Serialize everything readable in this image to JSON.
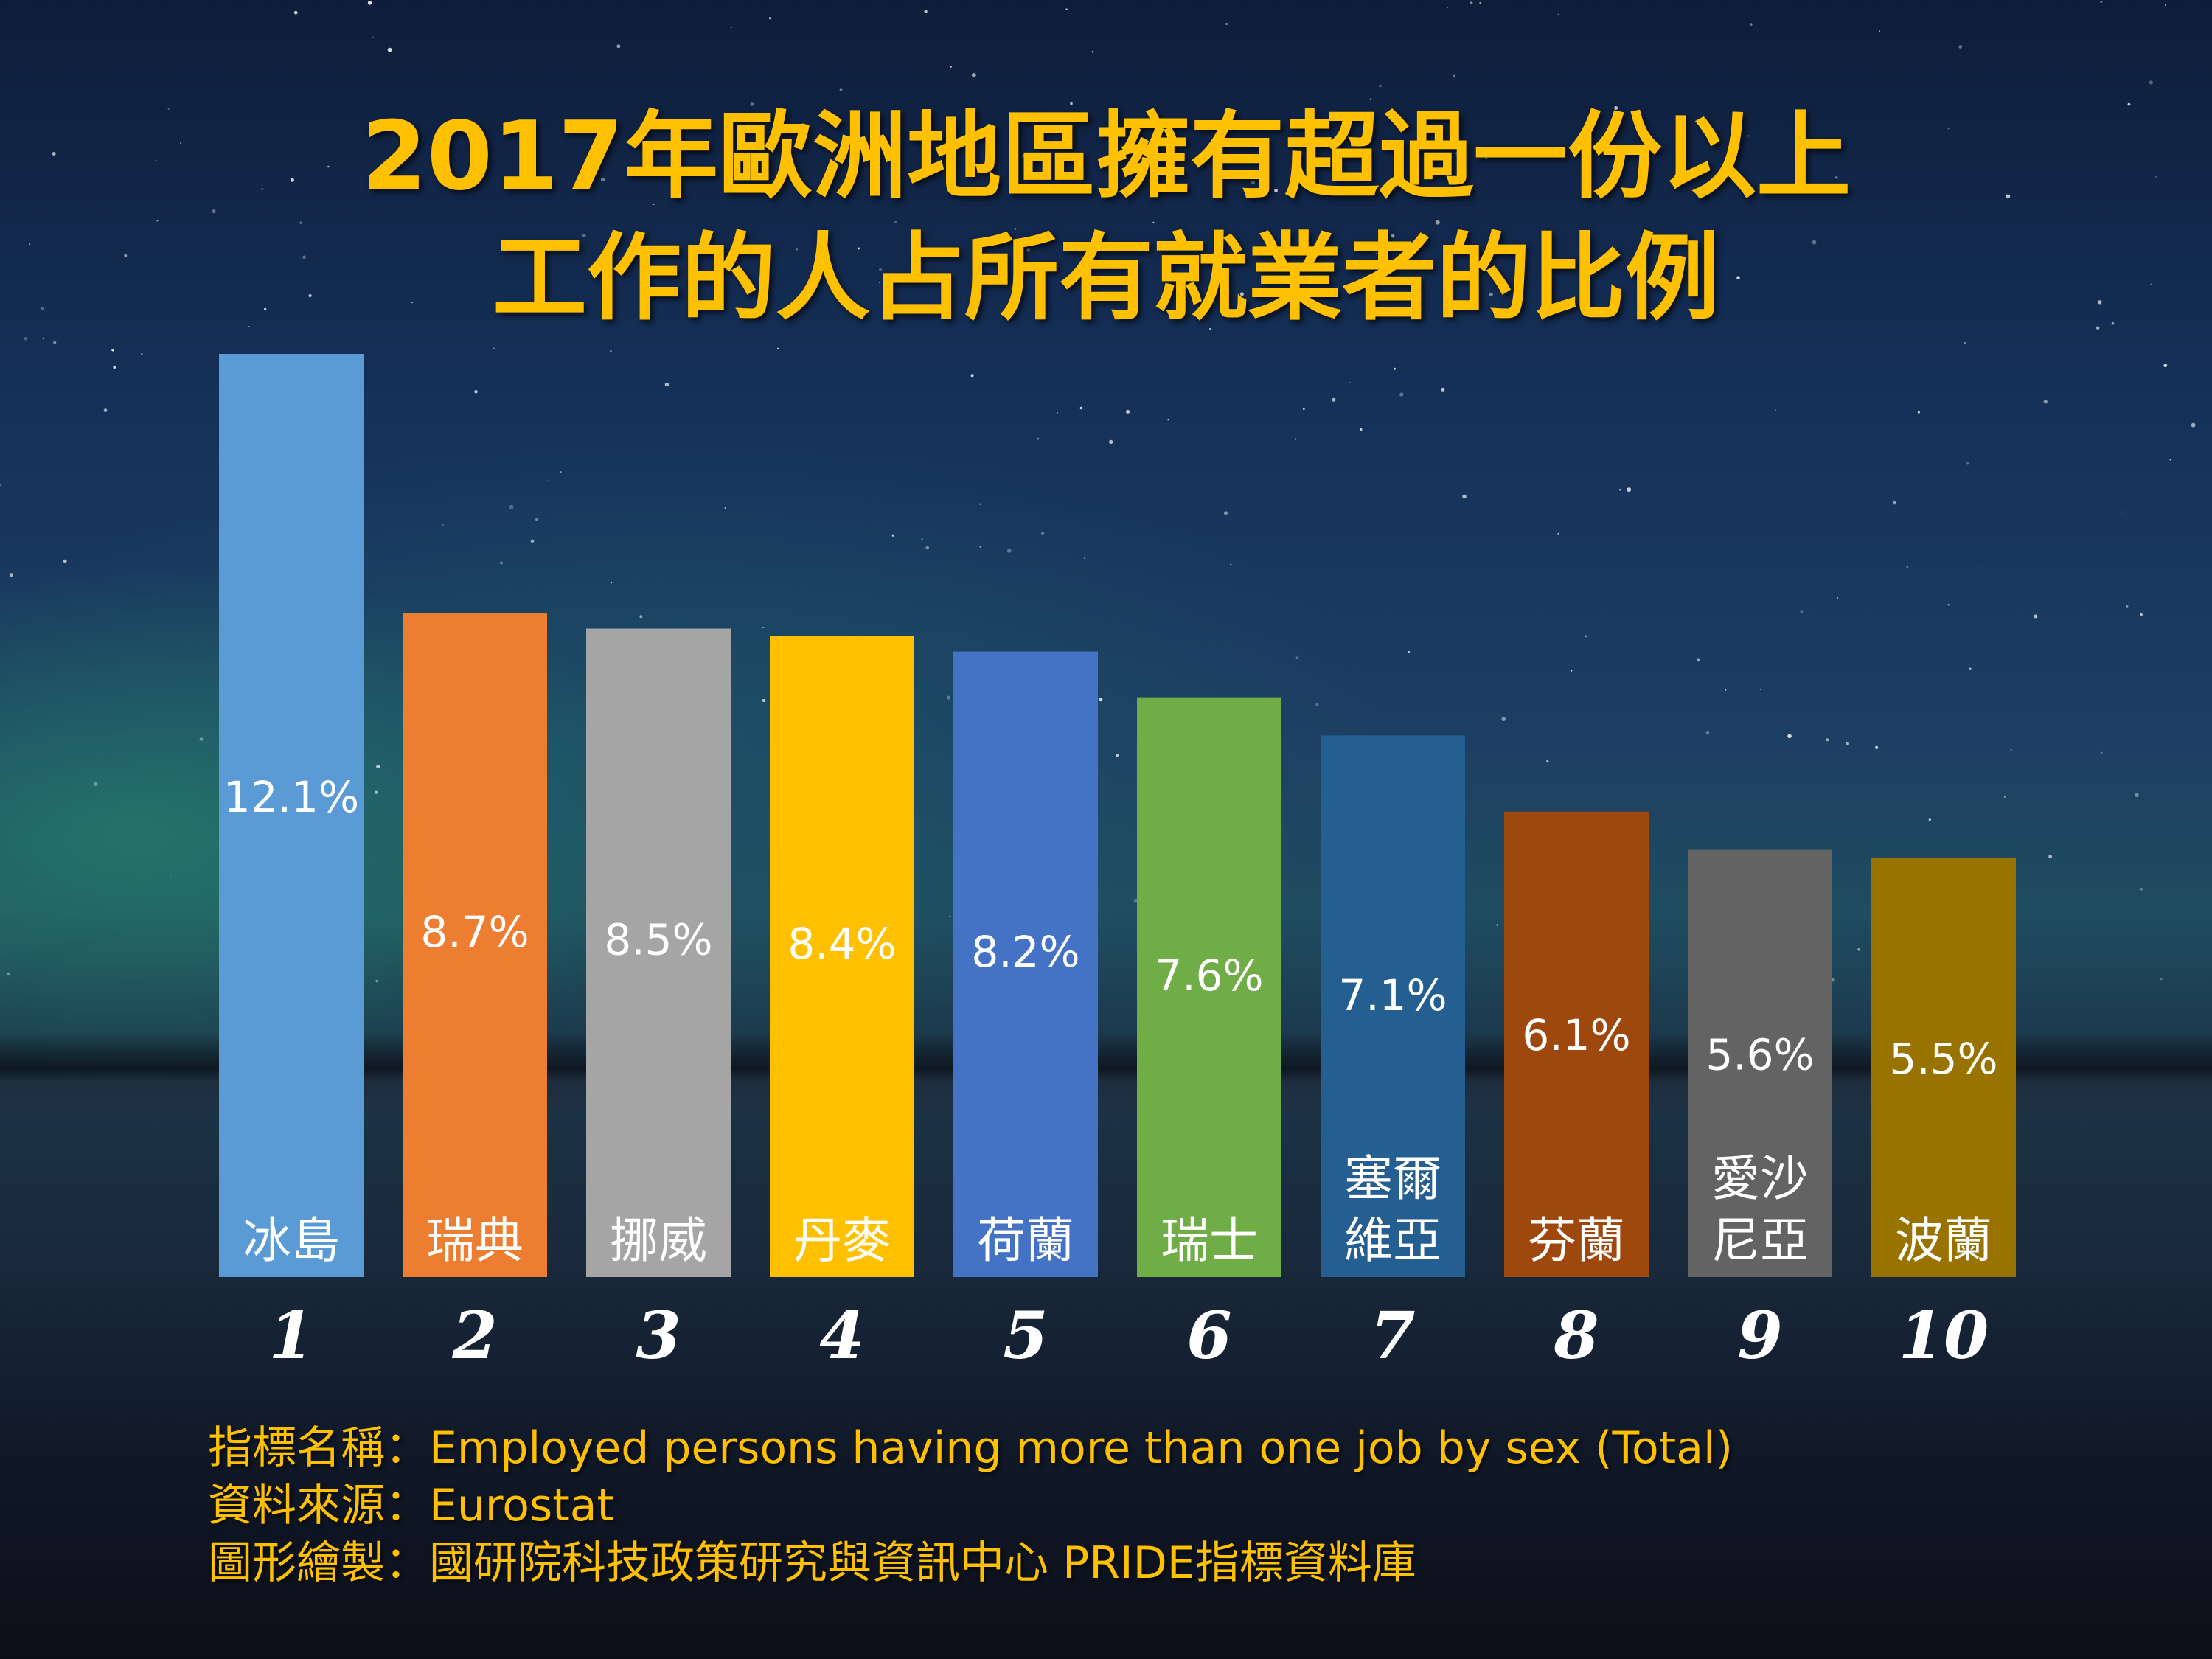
{
  "title": {
    "line1": "2017年歐洲地區擁有超過一份以上",
    "line2": "工作的人占所有就業者的比例"
  },
  "chart_data": {
    "type": "bar",
    "categories": [
      "冰島",
      "瑞典",
      "挪威",
      "丹麥",
      "荷蘭",
      "瑞士",
      "塞爾維亞",
      "芬蘭",
      "愛沙尼亞",
      "波蘭"
    ],
    "category_lines": [
      [
        "冰島"
      ],
      [
        "瑞典"
      ],
      [
        "挪威"
      ],
      [
        "丹麥"
      ],
      [
        "荷蘭"
      ],
      [
        "瑞士"
      ],
      [
        "塞爾",
        "維亞"
      ],
      [
        "芬蘭"
      ],
      [
        "愛沙",
        "尼亞"
      ],
      [
        "波蘭"
      ]
    ],
    "values": [
      12.1,
      8.7,
      8.5,
      8.4,
      8.2,
      7.6,
      7.1,
      6.1,
      5.6,
      5.5
    ],
    "value_labels": [
      "12.1%",
      "8.7%",
      "8.5%",
      "8.4%",
      "8.2%",
      "7.6%",
      "7.1%",
      "6.1%",
      "5.6%",
      "5.5%"
    ],
    "ranks": [
      "1",
      "2",
      "3",
      "4",
      "5",
      "6",
      "7",
      "8",
      "9",
      "10"
    ],
    "colors": [
      "#5B9BD5",
      "#ED7D31",
      "#A5A5A5",
      "#FFC000",
      "#4472C4",
      "#70AD47",
      "#255E91",
      "#9E480E",
      "#636363",
      "#997300"
    ],
    "unit": "%",
    "ylim": [
      0,
      12.1
    ],
    "grid": false,
    "legend": "none"
  },
  "footer": {
    "indicator_name": "指標名稱：Employed persons having more than one job by sex (Total)",
    "source": "資料來源：Eurostat",
    "made_by": "圖形繪製：國研院科技政策研究與資訊中心 PRIDE指標資料庫"
  }
}
